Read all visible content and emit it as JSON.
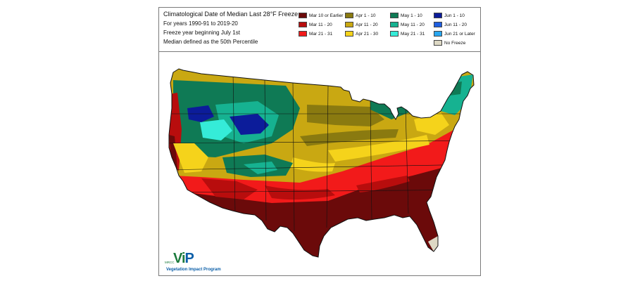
{
  "title": {
    "line1": "Climatological Date of Median Last 28°F Freeze",
    "line2": "For years 1990-91 to 2019-20",
    "line3": "Freeze year beginning July 1st",
    "line4": "Median defined as the 50th Percentile"
  },
  "legend": [
    {
      "label": "Mar 10 or Earlier",
      "color": "#6b0a0a"
    },
    {
      "label": "Mar 11 - 20",
      "color": "#b80d0d"
    },
    {
      "label": "Mar 21 - 31",
      "color": "#f21a1a"
    },
    {
      "label": "Apr 1 - 10",
      "color": "#8a7a10"
    },
    {
      "label": "Apr 11 - 20",
      "color": "#c9a812"
    },
    {
      "label": "Apr 21 - 30",
      "color": "#f5d31b"
    },
    {
      "label": "May 1 - 10",
      "color": "#0f7a55"
    },
    {
      "label": "May 11 - 20",
      "color": "#16b291"
    },
    {
      "label": "May 21 - 31",
      "color": "#35ecd8"
    },
    {
      "label": "Jun 1 - 10",
      "color": "#0c1c9a"
    },
    {
      "label": "Jun 11 - 20",
      "color": "#1f5fe0"
    },
    {
      "label": "Jun 21 or Later",
      "color": "#28a6f0"
    },
    {
      "label": "No Freeze",
      "color": "#ddd8c4"
    }
  ],
  "logo": {
    "org": "MRCC",
    "mark_v": "V",
    "mark_i": "i",
    "mark_p": "P",
    "name": "Vegetation Impact Program"
  }
}
